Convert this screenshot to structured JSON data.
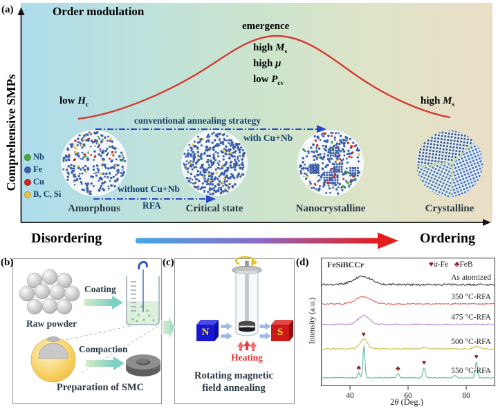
{
  "panel_a": {
    "label": "(a)",
    "y_axis_label": "Comprehensive SMPs",
    "title": "Order modulation",
    "emergence": "emergence",
    "peak_props": [
      {
        "prefix": "high ",
        "sym": "M",
        "sub": "s"
      },
      {
        "prefix": "high ",
        "sym": "μ",
        "sub": ""
      },
      {
        "prefix": "low ",
        "sym": "P",
        "sub": "cv"
      }
    ],
    "left_label": {
      "prefix": "low ",
      "sym": "H",
      "sub": "c"
    },
    "right_label": {
      "prefix": "high ",
      "sym": "M",
      "sub": "s"
    },
    "top_arrow_label": "conventional annealing strategy",
    "with_cunb": "with Cu+Nb",
    "without_cunb": "without Cu+Nb",
    "rfa": "RFA",
    "legend": [
      {
        "name": "Nb",
        "color": "#4ca83c"
      },
      {
        "name": "Fe",
        "color": "#3c60aa"
      },
      {
        "name": "Cu",
        "color": "#d2251c"
      },
      {
        "name": "B, C, Si",
        "color": "#e6c33c"
      }
    ],
    "states": [
      "Amorphous",
      "Critical state",
      "Nanocrystalline",
      "Crystalline"
    ],
    "x_axis_left": "Disordering",
    "x_axis_right": "Ordering"
  },
  "panel_b": {
    "label": "(b)",
    "raw_powder": "Raw powder",
    "coating": "Coating",
    "compaction": "Compaction",
    "caption": "Preparation of SMC"
  },
  "panel_c": {
    "label": "(c)",
    "north": "N",
    "south": "S",
    "heating": "Heating",
    "caption_line1": "Rotating magnetic",
    "caption_line2": "field annealing"
  },
  "panel_d": {
    "label": "(d)",
    "sample": "FeSiBCCr",
    "ylabel": "Intensity (a.u.)",
    "xlabel_num": "2",
    "xlabel_sym": "θ",
    "xlabel_rest": " (Deg.)"
  },
  "chart_data": {
    "type": "line",
    "annotation": "FeSiBCCr",
    "xlabel": "2θ (Deg.)",
    "ylabel": "Intensity (a.u.)",
    "x_range": [
      30,
      90
    ],
    "x_ticks": [
      40,
      60,
      80
    ],
    "legend": [
      {
        "symbol": "♥",
        "phase": "α-Fe",
        "color": "#8b1717"
      },
      {
        "symbol": "♣",
        "phase": "FeB",
        "color": "#8b1717"
      }
    ],
    "series": [
      {
        "name": "As atomized",
        "color": "#3a3a3a",
        "baseline": 0.21,
        "noise": 0.007,
        "peaks": [
          {
            "center": 44.4,
            "sigma": 3.2,
            "height": 0.062
          }
        ]
      },
      {
        "name": "350 °C-RFA",
        "color": "#dd645c",
        "baseline": 0.36,
        "noise": 0.005,
        "peaks": [
          {
            "center": 44.6,
            "sigma": 2.6,
            "height": 0.055
          }
        ]
      },
      {
        "name": "475 °C-RFA",
        "color": "#b48fd8",
        "baseline": 0.52,
        "noise": 0.005,
        "peaks": [
          {
            "center": 44.7,
            "sigma": 1.9,
            "height": 0.068
          }
        ]
      },
      {
        "name": "500 °C-RFA",
        "color": "#d5ba48",
        "baseline": 0.71,
        "noise": 0.005,
        "peaks": [
          {
            "center": 44.7,
            "sigma": 1.3,
            "height": 0.075
          },
          {
            "center": 65.5,
            "sigma": 1.0,
            "height": 0.01
          },
          {
            "center": 83.5,
            "sigma": 1.1,
            "height": 0.016
          }
        ]
      },
      {
        "name": "550 °C-RFA",
        "color": "#52bc9c",
        "baseline": 0.935,
        "noise": 0.003,
        "peaks": [
          {
            "center": 43.0,
            "sigma": 0.38,
            "height": 0.04
          },
          {
            "center": 44.8,
            "sigma": 0.34,
            "height": 0.25
          },
          {
            "center": 56.5,
            "sigma": 0.42,
            "height": 0.035
          },
          {
            "center": 65.5,
            "sigma": 0.4,
            "height": 0.08
          },
          {
            "center": 76.0,
            "sigma": 0.5,
            "height": 0.018
          },
          {
            "center": 83.5,
            "sigma": 0.38,
            "height": 0.125
          }
        ]
      }
    ],
    "markers": [
      {
        "symbol": "♥",
        "series": 3,
        "two_theta": 44.7
      },
      {
        "symbol": "♣",
        "series": 4,
        "two_theta": 43.0
      },
      {
        "symbol": "♣",
        "series": 4,
        "two_theta": 56.5
      },
      {
        "symbol": "♥",
        "series": 4,
        "two_theta": 65.5
      },
      {
        "symbol": "♥",
        "series": 4,
        "two_theta": 83.5
      }
    ]
  }
}
